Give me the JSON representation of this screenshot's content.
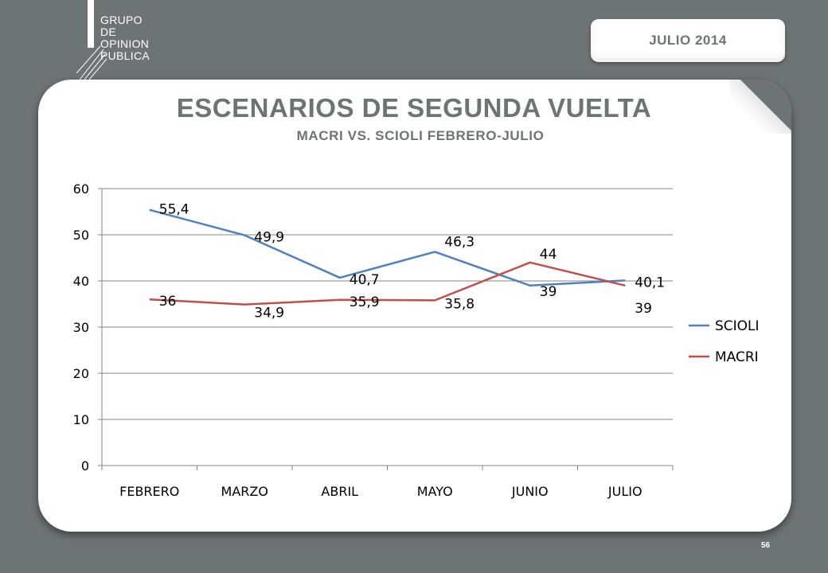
{
  "logo": {
    "lines": [
      "GRUPO",
      "DE",
      "OPINION",
      "PUBLICA"
    ]
  },
  "badge": {
    "date": "JULIO  2014"
  },
  "page": {
    "number": "56"
  },
  "colors": {
    "background": "#6d7476",
    "scioli": "#4f81bd",
    "macri": "#c0504d",
    "gridline": "#868686"
  },
  "chart_data": {
    "type": "line",
    "title": "ESCENARIOS DE SEGUNDA VUELTA",
    "subtitle": "MACRI VS. SCIOLI FEBRERO-JULIO",
    "categories": [
      "FEBRERO",
      "MARZO",
      "ABRIL",
      "MAYO",
      "JUNIO",
      "JULIO"
    ],
    "series": [
      {
        "name": "SCIOLI",
        "color": "#4f81bd",
        "values": [
          55.4,
          49.9,
          40.7,
          46.3,
          39,
          40.1
        ],
        "labels": [
          "55,4",
          "49,9",
          "40,7",
          "46,3",
          "39",
          "40,1"
        ]
      },
      {
        "name": "MACRI",
        "color": "#c0504d",
        "values": [
          36,
          34.9,
          35.9,
          35.8,
          44,
          39
        ],
        "labels": [
          "36",
          "34,9",
          "35,9",
          "35,8",
          "44",
          "39"
        ]
      }
    ],
    "ylim": [
      0,
      60
    ],
    "yticks": [
      "0",
      "10",
      "20",
      "30",
      "40",
      "50",
      "60"
    ],
    "grid": true,
    "legend": "right"
  }
}
